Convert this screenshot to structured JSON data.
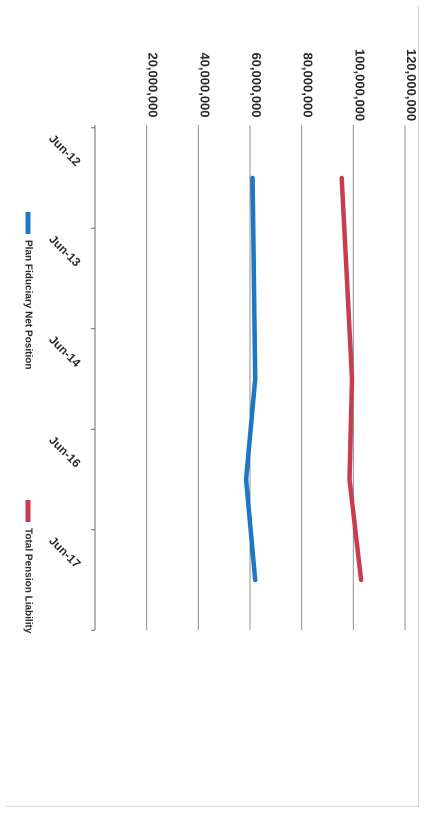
{
  "chart_data": {
    "type": "line",
    "categories": [
      "Jun-12",
      "Jun-13",
      "Jun-14",
      "Jun-16",
      "Jun-17"
    ],
    "ylim": [
      0,
      120000000
    ],
    "y_ticks": [
      {
        "value": 20000000,
        "label": "20,000,000"
      },
      {
        "value": 40000000,
        "label": "40,000,000"
      },
      {
        "value": 60000000,
        "label": "60,000,000"
      },
      {
        "value": 80000000,
        "label": "80,000,000"
      },
      {
        "value": 100000000,
        "label": "100,000,000"
      },
      {
        "value": 120000000,
        "label": "120,000,000"
      }
    ],
    "grid": true,
    "legend_position": "bottom",
    "series": [
      {
        "name": "Plan Fiduciary Net Position",
        "color": "#1f77c4",
        "values": [
          61000000,
          61500000,
          62000000,
          58500000,
          62000000
        ]
      },
      {
        "name": "Total Pension Liability",
        "color": "#c83c4f",
        "values": [
          95500000,
          97500000,
          99500000,
          98500000,
          103000000
        ]
      }
    ]
  }
}
